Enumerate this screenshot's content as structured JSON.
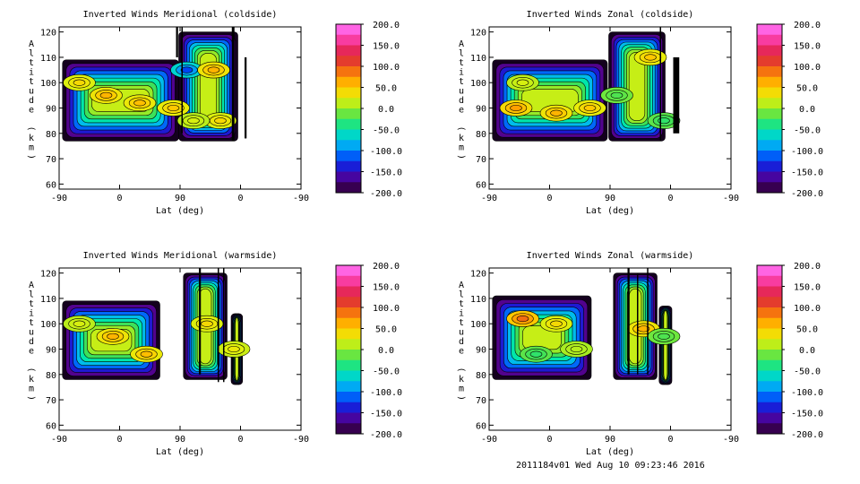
{
  "chart_data": [
    {
      "type": "heatmap",
      "title": "Inverted Winds Meridional (coldside)",
      "xlabel": "Lat (deg)",
      "ylabel": "Altitude (km)",
      "xticks": [
        "-90",
        "0",
        "90",
        "0",
        "-90"
      ],
      "yticks": [
        "60",
        "70",
        "80",
        "90",
        "100",
        "110",
        "120"
      ],
      "ylim": [
        58,
        122
      ],
      "colorbar": {
        "min": -200,
        "max": 200,
        "ticks": [
          "200.0",
          "150.0",
          "100.0",
          "50.0",
          "0.0",
          "-50.0",
          "-100.0",
          "-150.0",
          "-200.0"
        ]
      },
      "blobs": [
        {
          "lat": -60,
          "alt": 100,
          "value": 40
        },
        {
          "lat": -20,
          "alt": 95,
          "value": 60
        },
        {
          "lat": 30,
          "alt": 92,
          "value": 55
        },
        {
          "lat": 80,
          "alt": 90,
          "value": 50
        },
        {
          "lat": 100,
          "alt": 105,
          "value": -120
        },
        {
          "lat": 140,
          "alt": 105,
          "value": 60
        },
        {
          "lat": 150,
          "alt": 85,
          "value": 40
        },
        {
          "lat": 110,
          "alt": 85,
          "value": 20
        }
      ]
    },
    {
      "type": "heatmap",
      "title": "Inverted Winds Zonal (coldside)",
      "xlabel": "Lat (deg)",
      "ylabel": "Altitude (km)",
      "xticks": [
        "-90",
        "0",
        "90",
        "0",
        "-90"
      ],
      "yticks": [
        "60",
        "70",
        "80",
        "90",
        "100",
        "110",
        "120"
      ],
      "ylim": [
        58,
        122
      ],
      "colorbar": {
        "min": -200,
        "max": 200,
        "ticks": [
          "200.0",
          "150.0",
          "100.0",
          "50.0",
          "0.0",
          "-50.0",
          "-100.0",
          "-150.0",
          "-200.0"
        ]
      },
      "blobs": [
        {
          "lat": -50,
          "alt": 90,
          "value": 70
        },
        {
          "lat": 10,
          "alt": 88,
          "value": 60
        },
        {
          "lat": 60,
          "alt": 90,
          "value": 50
        },
        {
          "lat": -40,
          "alt": 100,
          "value": 20
        },
        {
          "lat": 100,
          "alt": 95,
          "value": -20
        },
        {
          "lat": 150,
          "alt": 110,
          "value": 50
        },
        {
          "lat": 170,
          "alt": 85,
          "value": -30
        }
      ]
    },
    {
      "type": "heatmap",
      "title": "Inverted Winds Meridional (warmside)",
      "xlabel": "Lat (deg)",
      "ylabel": "Altitude (km)",
      "xticks": [
        "-90",
        "0",
        "90",
        "0",
        "-90"
      ],
      "yticks": [
        "60",
        "70",
        "80",
        "90",
        "100",
        "110",
        "120"
      ],
      "ylim": [
        58,
        122
      ],
      "colorbar": {
        "min": -200,
        "max": 200,
        "ticks": [
          "200.0",
          "150.0",
          "100.0",
          "50.0",
          "0.0",
          "-50.0",
          "-100.0",
          "-150.0",
          "-200.0"
        ]
      },
      "blobs": [
        {
          "lat": -10,
          "alt": 95,
          "value": 60
        },
        {
          "lat": 40,
          "alt": 88,
          "value": 55
        },
        {
          "lat": -60,
          "alt": 100,
          "value": 20
        },
        {
          "lat": 130,
          "alt": 100,
          "value": 40
        },
        {
          "lat": 170,
          "alt": 90,
          "value": 30
        }
      ]
    },
    {
      "type": "heatmap",
      "title": "Inverted Winds Zonal (warmside)",
      "xlabel": "Lat (deg)",
      "ylabel": "Altitude (km)",
      "xticks": [
        "-90",
        "0",
        "90",
        "0",
        "-90"
      ],
      "yticks": [
        "60",
        "70",
        "80",
        "90",
        "100",
        "110",
        "120"
      ],
      "ylim": [
        58,
        122
      ],
      "colorbar": {
        "min": -200,
        "max": 200,
        "ticks": [
          "200.0",
          "150.0",
          "100.0",
          "50.0",
          "0.0",
          "-50.0",
          "-100.0",
          "-150.0",
          "-200.0"
        ]
      },
      "blobs": [
        {
          "lat": -40,
          "alt": 102,
          "value": 90
        },
        {
          "lat": 10,
          "alt": 100,
          "value": 40
        },
        {
          "lat": -20,
          "alt": 88,
          "value": -30
        },
        {
          "lat": 40,
          "alt": 90,
          "value": 10
        },
        {
          "lat": 140,
          "alt": 98,
          "value": 60
        },
        {
          "lat": 170,
          "alt": 95,
          "value": -20
        }
      ]
    }
  ],
  "footer": "2011184v01 Wed Aug 10 09:23:46 2016"
}
